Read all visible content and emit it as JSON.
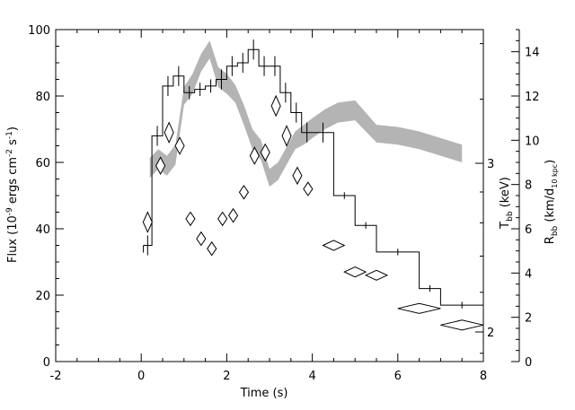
{
  "chart_data": {
    "type": "line",
    "xlabel": "Time (s)",
    "ylabel": "Flux (10^-9 ergs cm^-2 s^-1)",
    "ylabel_parts": {
      "base": "Flux (10",
      "e1": "-9",
      "mid1": " ergs cm",
      "e2": "-2",
      "mid2": " s",
      "e3": "-1",
      "end": ")"
    },
    "xlim": [
      -2,
      8
    ],
    "ylim": [
      0,
      100
    ],
    "x_ticks": [
      -2,
      0,
      2,
      4,
      6,
      8
    ],
    "y_ticks": [
      0,
      20,
      40,
      60,
      80,
      100
    ],
    "grid": false,
    "right_axis_T": {
      "label_base": "T",
      "label_sub": "bb",
      "label_end": " (keV)",
      "ticks": [
        2,
        3
      ]
    },
    "right_axis_R": {
      "label_base": "R",
      "label_sub": "bb",
      "label_mid": " (km/d",
      "label_sub2": "10 kpc",
      "label_end": ")",
      "range": [
        0,
        15
      ],
      "ticks": [
        0,
        2,
        4,
        6,
        8,
        10,
        12,
        14
      ]
    },
    "series": [
      {
        "kind": "step-histogram",
        "axis": "left",
        "edges": [
          0.05,
          0.25,
          0.5,
          0.75,
          1.0,
          1.25,
          1.5,
          1.75,
          2.0,
          2.25,
          2.5,
          2.75,
          3.0,
          3.25,
          3.5,
          3.75,
          4.0,
          4.5,
          5.0,
          5.5,
          6.5,
          7.0,
          8.0
        ],
        "values": [
          35,
          68,
          83,
          86,
          81,
          82,
          83,
          85,
          89,
          90,
          94,
          89,
          89,
          81,
          75,
          69,
          69,
          50,
          41,
          33,
          22,
          17
        ],
        "errors": [
          3,
          3,
          3,
          3,
          2,
          2,
          2,
          3,
          3,
          3,
          3,
          3,
          3,
          3,
          3,
          3,
          3,
          1,
          1,
          1,
          1,
          1
        ]
      },
      {
        "kind": "band",
        "axis": "right_R",
        "x": [
          0.2,
          0.4,
          0.6,
          0.8,
          1.0,
          1.2,
          1.4,
          1.6,
          1.8,
          2.0,
          2.2,
          2.4,
          2.6,
          2.8,
          3.0,
          3.2,
          3.4,
          3.6,
          3.8,
          4.0,
          4.3,
          4.6,
          5.0,
          5.5,
          6.0,
          6.5,
          7.0,
          7.5
        ],
        "low": [
          8.3,
          8.7,
          8.4,
          8.9,
          11.6,
          12.1,
          13.1,
          13.7,
          12.4,
          12.1,
          11.7,
          10.7,
          9.6,
          9.1,
          7.9,
          8.2,
          8.9,
          9.6,
          9.8,
          10.1,
          10.5,
          10.8,
          10.9,
          9.9,
          9.8,
          9.6,
          9.3,
          9.0
        ],
        "high": [
          9.2,
          9.6,
          9.3,
          9.8,
          12.4,
          13.0,
          13.9,
          14.5,
          13.3,
          13.0,
          12.5,
          11.6,
          10.5,
          10.0,
          8.7,
          9.0,
          9.7,
          10.4,
          10.7,
          11.0,
          11.4,
          11.7,
          11.8,
          10.7,
          10.6,
          10.4,
          10.1,
          9.8
        ]
      },
      {
        "kind": "diamond-errorbars",
        "axis": "left",
        "points": [
          {
            "x": 0.15,
            "y": 42,
            "xerr": 0.1,
            "yerr": 3
          },
          {
            "x": 0.45,
            "y": 59,
            "xerr": 0.1,
            "yerr": 2.5
          },
          {
            "x": 0.65,
            "y": 69,
            "xerr": 0.1,
            "yerr": 3
          },
          {
            "x": 0.9,
            "y": 65,
            "xerr": 0.1,
            "yerr": 2.5
          },
          {
            "x": 1.15,
            "y": 43,
            "xerr": 0.1,
            "yerr": 2
          },
          {
            "x": 1.4,
            "y": 37,
            "xerr": 0.1,
            "yerr": 2
          },
          {
            "x": 1.65,
            "y": 34,
            "xerr": 0.1,
            "yerr": 2
          },
          {
            "x": 1.9,
            "y": 43,
            "xerr": 0.1,
            "yerr": 2
          },
          {
            "x": 2.15,
            "y": 44,
            "xerr": 0.1,
            "yerr": 2
          },
          {
            "x": 2.4,
            "y": 51,
            "xerr": 0.1,
            "yerr": 2
          },
          {
            "x": 2.65,
            "y": 62,
            "xerr": 0.1,
            "yerr": 2.5
          },
          {
            "x": 2.9,
            "y": 63,
            "xerr": 0.1,
            "yerr": 2.5
          },
          {
            "x": 3.15,
            "y": 77,
            "xerr": 0.1,
            "yerr": 3
          },
          {
            "x": 3.4,
            "y": 68,
            "xerr": 0.1,
            "yerr": 3
          },
          {
            "x": 3.65,
            "y": 56,
            "xerr": 0.1,
            "yerr": 2.5
          },
          {
            "x": 3.9,
            "y": 52,
            "xerr": 0.1,
            "yerr": 2
          },
          {
            "x": 4.5,
            "y": 35,
            "xerr": 0.25,
            "yerr": 1.5
          },
          {
            "x": 5.0,
            "y": 27,
            "xerr": 0.25,
            "yerr": 1.5
          },
          {
            "x": 5.5,
            "y": 26,
            "xerr": 0.25,
            "yerr": 1.5
          },
          {
            "x": 6.5,
            "y": 16,
            "xerr": 0.5,
            "yerr": 1.5
          },
          {
            "x": 7.5,
            "y": 11,
            "xerr": 0.5,
            "yerr": 1.5
          }
        ]
      }
    ]
  }
}
